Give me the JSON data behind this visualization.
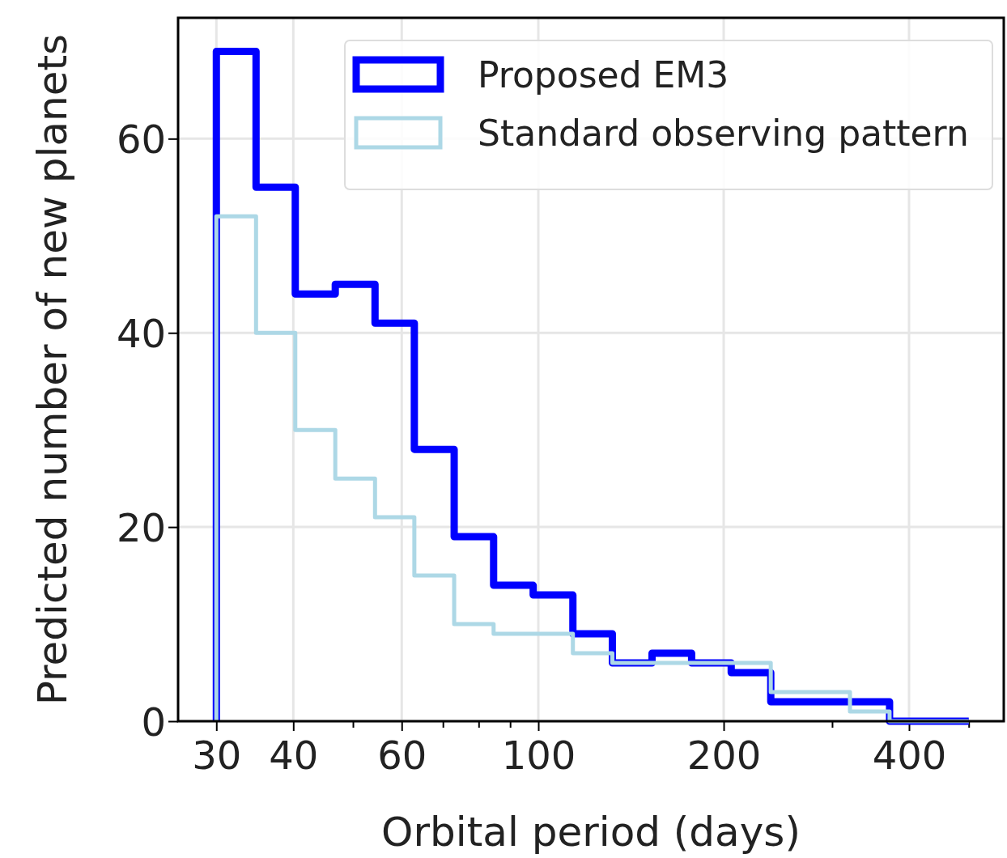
{
  "chart_data": {
    "type": "histogram",
    "xlabel": "Orbital period (days)",
    "ylabel": "Predicted number of new planets",
    "bins": [
      30,
      34.8,
      40.3,
      46.8,
      54.3,
      62.9,
      73,
      84.6,
      98.1,
      113.8,
      131.9,
      153,
      177.4,
      205.7,
      238.5,
      276.6,
      320.7,
      371.9,
      431.3,
      500.1
    ],
    "series": [
      {
        "name": "Proposed EM3",
        "color": "#0000ff",
        "values": [
          69,
          55,
          44,
          45,
          41,
          28,
          19,
          14,
          13,
          9,
          6,
          7,
          6,
          5,
          2,
          2,
          2,
          0,
          0
        ]
      },
      {
        "name": "Standard observing pattern",
        "color": "#add8e6",
        "values": [
          52,
          40,
          30,
          25,
          21,
          15,
          10,
          9,
          9,
          7,
          6,
          6,
          6,
          6,
          3,
          3,
          1,
          0,
          0
        ]
      }
    ],
    "log": "x",
    "xlim": [
      26,
      570
    ],
    "ylim": [
      0,
      72.45
    ],
    "xticks": [
      30,
      40,
      {
        "value": 50,
        "label": null
      },
      60,
      {
        "value": 70,
        "label": null
      },
      {
        "value": 80,
        "label": null
      },
      {
        "value": 90,
        "label": null
      },
      100,
      200,
      {
        "value": 300,
        "label": null
      },
      400,
      {
        "value": 500,
        "label": null
      }
    ],
    "yticks": [
      0,
      20,
      40,
      60
    ],
    "grid": true,
    "legend": "top right"
  }
}
